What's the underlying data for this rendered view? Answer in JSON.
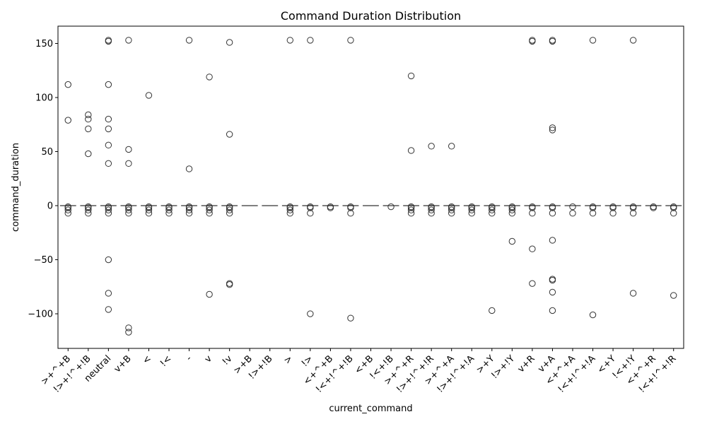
{
  "chart_data": {
    "type": "box",
    "title": "Command Duration Distribution",
    "xlabel": "current_command",
    "ylabel": "command_duration",
    "ylim": [
      -132,
      166
    ],
    "yticks": [
      -100,
      -50,
      0,
      50,
      100,
      150
    ],
    "ytick_labels": [
      "−100",
      "−50",
      "0",
      "50",
      "100",
      "150"
    ],
    "grid": false,
    "categories": [
      ">+^+B",
      "!>+!^+!B",
      "neutral",
      "v+B",
      "<",
      "!<",
      "-",
      "v",
      "!v",
      ">+B",
      "!>+!B",
      ">",
      "!>",
      "<+^+B",
      "!<+!^+!B",
      "<+B",
      "!<+!B",
      ">+^+R",
      "!>+!^+!R",
      ">+^+A",
      "!>+!^+!A",
      ">+Y",
      "!>+!Y",
      "v+R",
      "v+A",
      "<+^+A",
      "!<+!^+!A",
      "<+Y",
      "!<+!Y",
      "<+^+R",
      "!<+!^+!R"
    ],
    "median": 0,
    "outliers": [
      [
        112,
        79,
        -1,
        -2,
        -4,
        -7
      ],
      [
        84,
        80,
        71,
        48,
        -1,
        -2,
        -4,
        -7
      ],
      [
        153,
        152,
        112,
        80,
        71,
        56,
        39,
        -1,
        -2,
        -4,
        -7,
        -50,
        -81,
        -96
      ],
      [
        153,
        52,
        39,
        -1,
        -2,
        -4,
        -7,
        -113,
        -117
      ],
      [
        102,
        -1,
        -2,
        -4,
        -7
      ],
      [
        -1,
        -2,
        -4,
        -7
      ],
      [
        153,
        34,
        -1,
        -2,
        -4,
        -7
      ],
      [
        119,
        -1,
        -2,
        -4,
        -7,
        -82
      ],
      [
        151,
        66,
        -1,
        -2,
        -4,
        -7,
        -72,
        -73
      ],
      [],
      [],
      [
        153,
        -1,
        -2,
        -4,
        -7
      ],
      [
        153,
        -1,
        -2,
        -7,
        -100
      ],
      [
        -1,
        -2
      ],
      [
        153,
        -1,
        -2,
        -7,
        -104
      ],
      [],
      [
        -1
      ],
      [
        120,
        51,
        -1,
        -2,
        -4,
        -7
      ],
      [
        55,
        -1,
        -2,
        -4,
        -7
      ],
      [
        55,
        -1,
        -2,
        -4,
        -7
      ],
      [
        -1,
        -2,
        -4,
        -7
      ],
      [
        -1,
        -2,
        -4,
        -7,
        -97
      ],
      [
        -1,
        -2,
        -4,
        -7,
        -33
      ],
      [
        153,
        152,
        -1,
        -2,
        -7,
        -40,
        -72
      ],
      [
        153,
        152,
        72,
        70,
        -1,
        -2,
        -7,
        -32,
        -68,
        -69,
        -80,
        -97
      ],
      [
        -1,
        -7
      ],
      [
        153,
        -1,
        -2,
        -7,
        -101
      ],
      [
        -1,
        -2,
        -7
      ],
      [
        153,
        -1,
        -2,
        -7,
        -81
      ],
      [
        -1,
        -2
      ],
      [
        -1,
        -2,
        -7,
        -83
      ]
    ]
  }
}
